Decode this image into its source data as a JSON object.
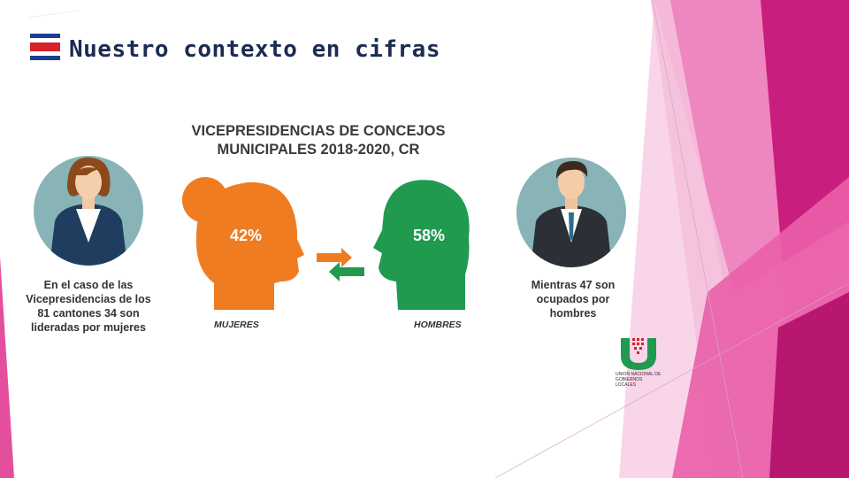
{
  "slide": {
    "title": "Nuestro contexto en cifras",
    "flag_icon": "costa-rica-flag-icon",
    "colors": {
      "title": "#1c2b52",
      "accent_pink": "#e62e8b",
      "female": "#f07c22",
      "male": "#1f9a4f"
    }
  },
  "infographic": {
    "title_line1": "VICEPRESIDENCIAS DE CONCEJOS",
    "title_line2": "MUNICIPALES 2018-2020, CR",
    "women": {
      "percent_label": "42%",
      "label": "MUJERES",
      "caption_lines": [
        "En el caso de las",
        "Vicepresidencias de los",
        "81 cantones 34 son",
        "lideradas por mujeres"
      ]
    },
    "men": {
      "percent_label": "58%",
      "label": "HOMBRES",
      "caption_lines": [
        "Mientras 47 son",
        "ocupados por",
        "hombres"
      ]
    }
  },
  "logo": {
    "icon": "ungl-logo-icon",
    "text": "UNION NACIONAL DE GOBIERNOS LOCALES"
  }
}
